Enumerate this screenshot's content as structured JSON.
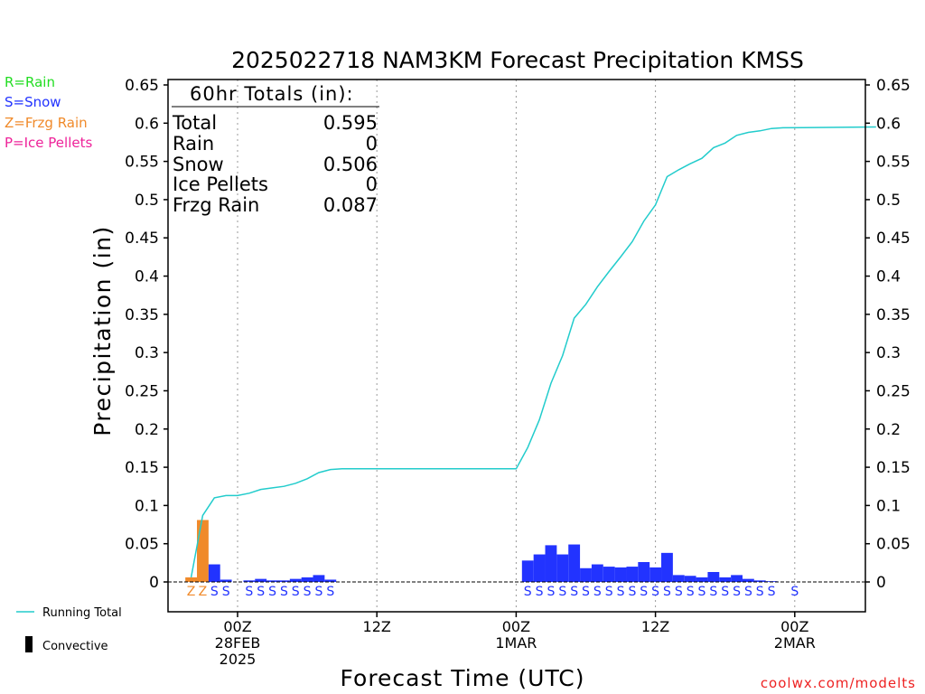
{
  "title": "2025022718 NAM3KM Forecast Precipitation KMSS",
  "ylabel": "Precipitation (in)",
  "xlabel": "Forecast Time (UTC)",
  "credit": "coolwx.com/modelts",
  "ptype_legend": [
    {
      "label": "R=Rain",
      "color": "#22dd22"
    },
    {
      "label": "S=Snow",
      "color": "#2233ff"
    },
    {
      "label": "Z=Frzg Rain",
      "color": "#f08a2a"
    },
    {
      "label": "P=Ice Pellets",
      "color": "#ee2299"
    }
  ],
  "bottom_legend": {
    "running_total": "Running Total",
    "convective": "Convective"
  },
  "totals": {
    "header": "60hr Totals (in):",
    "rows": [
      {
        "label": "Total",
        "value": "0.595"
      },
      {
        "label": "Rain",
        "value": "0"
      },
      {
        "label": "Snow",
        "value": "0.506"
      },
      {
        "label": "Ice Pellets",
        "value": "0"
      },
      {
        "label": "Frzg Rain",
        "value": "0.087"
      }
    ]
  },
  "colors": {
    "snow": "#2233ff",
    "frzg_rain": "#f08a2a",
    "running_total": "#22cccc",
    "axis": "#000000",
    "grid": "#999999"
  },
  "chart_data": {
    "type": "bar",
    "ylim": [
      0,
      0.65
    ],
    "yticks": [
      "0",
      "0.05",
      "0.1",
      "0.15",
      "0.2",
      "0.25",
      "0.3",
      "0.35",
      "0.4",
      "0.45",
      "0.5",
      "0.55",
      "0.6",
      "0.65"
    ],
    "xlim_hours": [
      -5,
      55
    ],
    "x_ticks": [
      {
        "hour": 0,
        "lines": [
          "00Z",
          "28FEB",
          "2025"
        ]
      },
      {
        "hour": 12,
        "lines": [
          "12Z"
        ]
      },
      {
        "hour": 24,
        "lines": [
          "00Z",
          "1MAR"
        ]
      },
      {
        "hour": 36,
        "lines": [
          "12Z"
        ]
      },
      {
        "hour": 48,
        "lines": [
          "00Z",
          "2MAR"
        ]
      }
    ],
    "grid": "vertical dotted at x ticks",
    "bars": [
      {
        "hour": -4,
        "value": 0.006,
        "type": "Z"
      },
      {
        "hour": -3,
        "value": 0.081,
        "type": "Z"
      },
      {
        "hour": -2,
        "value": 0.023,
        "type": "S"
      },
      {
        "hour": -1,
        "value": 0.003,
        "type": "S"
      },
      {
        "hour": 1,
        "value": 0.002,
        "type": "S"
      },
      {
        "hour": 2,
        "value": 0.004,
        "type": "S"
      },
      {
        "hour": 3,
        "value": 0.002,
        "type": "S"
      },
      {
        "hour": 4,
        "value": 0.002,
        "type": "S"
      },
      {
        "hour": 5,
        "value": 0.004,
        "type": "S"
      },
      {
        "hour": 6,
        "value": 0.006,
        "type": "S"
      },
      {
        "hour": 7,
        "value": 0.009,
        "type": "S"
      },
      {
        "hour": 8,
        "value": 0.003,
        "type": "S"
      },
      {
        "hour": 25,
        "value": 0.028,
        "type": "S"
      },
      {
        "hour": 26,
        "value": 0.036,
        "type": "S"
      },
      {
        "hour": 27,
        "value": 0.048,
        "type": "S"
      },
      {
        "hour": 28,
        "value": 0.036,
        "type": "S"
      },
      {
        "hour": 29,
        "value": 0.049,
        "type": "S"
      },
      {
        "hour": 30,
        "value": 0.018,
        "type": "S"
      },
      {
        "hour": 31,
        "value": 0.023,
        "type": "S"
      },
      {
        "hour": 32,
        "value": 0.02,
        "type": "S"
      },
      {
        "hour": 33,
        "value": 0.019,
        "type": "S"
      },
      {
        "hour": 34,
        "value": 0.02,
        "type": "S"
      },
      {
        "hour": 35,
        "value": 0.026,
        "type": "S"
      },
      {
        "hour": 36,
        "value": 0.019,
        "type": "S"
      },
      {
        "hour": 37,
        "value": 0.038,
        "type": "S"
      },
      {
        "hour": 38,
        "value": 0.009,
        "type": "S"
      },
      {
        "hour": 39,
        "value": 0.008,
        "type": "S"
      },
      {
        "hour": 40,
        "value": 0.006,
        "type": "S"
      },
      {
        "hour": 41,
        "value": 0.013,
        "type": "S"
      },
      {
        "hour": 42,
        "value": 0.006,
        "type": "S"
      },
      {
        "hour": 43,
        "value": 0.009,
        "type": "S"
      },
      {
        "hour": 44,
        "value": 0.004,
        "type": "S"
      },
      {
        "hour": 45,
        "value": 0.002,
        "type": "S"
      },
      {
        "hour": 46,
        "value": 0.001,
        "type": "S"
      },
      {
        "hour": 48,
        "value": 0.0,
        "type": "S"
      }
    ],
    "running_total": {
      "hours": [
        -4,
        -3,
        -2,
        -1,
        0,
        1,
        2,
        3,
        4,
        5,
        6,
        7,
        8,
        9,
        24,
        25,
        26,
        27,
        28,
        29,
        30,
        31,
        32,
        33,
        34,
        35,
        36,
        37,
        38,
        39,
        40,
        41,
        42,
        43,
        44,
        45,
        46,
        47,
        55
      ],
      "values": [
        0.006,
        0.087,
        0.11,
        0.113,
        0.113,
        0.116,
        0.121,
        0.123,
        0.125,
        0.129,
        0.135,
        0.143,
        0.147,
        0.148,
        0.148,
        0.176,
        0.212,
        0.26,
        0.296,
        0.345,
        0.363,
        0.386,
        0.406,
        0.425,
        0.445,
        0.472,
        0.493,
        0.53,
        0.539,
        0.547,
        0.554,
        0.568,
        0.574,
        0.584,
        0.588,
        0.59,
        0.593,
        0.594,
        0.595
      ]
    }
  }
}
